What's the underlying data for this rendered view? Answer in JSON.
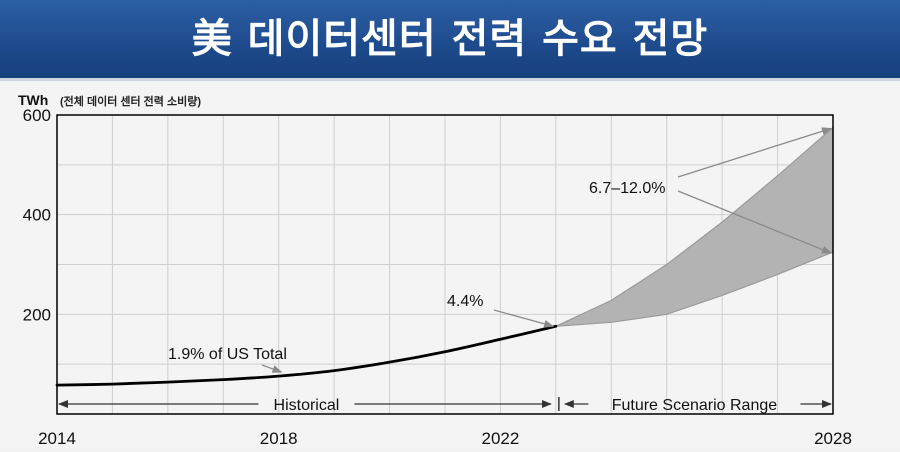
{
  "header": {
    "title": "美 데이터센터 전력 수요 전망"
  },
  "chart_data": {
    "type": "line",
    "ylabel_unit": "TWh",
    "ylabel_note": "(전체 데이터 센터 전력 소비량)",
    "xlim": [
      2014,
      2028
    ],
    "ylim": [
      0,
      600
    ],
    "x_ticks": [
      "2014",
      "2018",
      "2022",
      "2028"
    ],
    "y_ticks": [
      "200",
      "400",
      "600"
    ],
    "grid": true,
    "series": [
      {
        "x": [
          2014,
          2015,
          2016,
          2017,
          2018,
          2019,
          2020,
          2021,
          2022,
          2023
        ],
        "values": [
          58,
          60,
          64,
          69,
          76,
          87,
          104,
          125,
          150,
          176
        ]
      }
    ],
    "scenario_range": {
      "x": [
        2023,
        2024,
        2025,
        2026,
        2027,
        2028
      ],
      "upper": [
        176,
        228,
        300,
        385,
        478,
        575
      ],
      "lower": [
        176,
        184,
        200,
        238,
        280,
        325
      ]
    },
    "annotations": {
      "share_2018": "1.9% of US Total",
      "share_2023": "4.4%",
      "share_2028": "6.7–12.0%"
    },
    "periods": {
      "historical": "Historical",
      "future": "Future Scenario Range"
    }
  },
  "colors": {
    "title_bg": "#1d4a8c",
    "line": "#000000",
    "range_fill": "#b3b3b3",
    "grid": "#cfcfcf"
  }
}
